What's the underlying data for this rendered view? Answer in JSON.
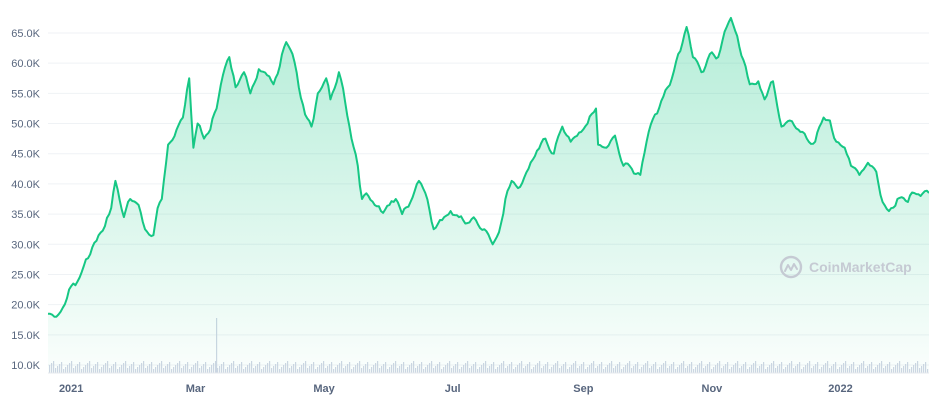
{
  "watermark": {
    "text": "CoinMarketCap"
  },
  "colors": {
    "line": "#16c784",
    "fill_top": "#16c784",
    "grid": "#eff2f5",
    "axis_text": "#58667e",
    "volume": "#cfd6e4"
  },
  "chart_data": {
    "type": "area",
    "ylim": [
      7500,
      68500
    ],
    "y_ticks": [
      10000,
      15000,
      20000,
      25000,
      30000,
      35000,
      40000,
      45000,
      50000,
      55000,
      60000,
      65000
    ],
    "y_tick_labels": [
      "10.0K",
      "15.0K",
      "20.0K",
      "25.0K",
      "30.0K",
      "35.0K",
      "40.0K",
      "45.0K",
      "50.0K",
      "55.0K",
      "60.0K",
      "65.0K"
    ],
    "x_ticks": [
      {
        "label": "2021",
        "date": "2021-01-01"
      },
      {
        "label": "Mar",
        "date": "2021-03-01"
      },
      {
        "label": "May",
        "date": "2021-05-01"
      },
      {
        "label": "Jul",
        "date": "2021-07-01"
      },
      {
        "label": "Sep",
        "date": "2021-09-01"
      },
      {
        "label": "Nov",
        "date": "2021-11-01"
      },
      {
        "label": "2022",
        "date": "2022-01-01"
      }
    ],
    "xlim": [
      "2020-12-21",
      "2022-02-12"
    ],
    "series": [
      {
        "values": [
          [
            "2020-12-21",
            18500
          ],
          [
            "2020-12-25",
            18000
          ],
          [
            "2020-12-28",
            19500
          ],
          [
            "2020-12-31",
            22500
          ],
          [
            "2021-01-02",
            23500
          ],
          [
            "2021-01-05",
            24500
          ],
          [
            "2021-01-08",
            27500
          ],
          [
            "2021-01-11",
            29500
          ],
          [
            "2021-01-14",
            31500
          ],
          [
            "2021-01-17",
            33000
          ],
          [
            "2021-01-20",
            36000
          ],
          [
            "2021-01-22",
            40500
          ],
          [
            "2021-01-26",
            34500
          ],
          [
            "2021-01-29",
            37500
          ],
          [
            "2021-02-02",
            36500
          ],
          [
            "2021-02-05",
            32500
          ],
          [
            "2021-02-09",
            31500
          ],
          [
            "2021-02-11",
            36000
          ],
          [
            "2021-02-13",
            37500
          ],
          [
            "2021-02-16",
            46500
          ],
          [
            "2021-02-20",
            49000
          ],
          [
            "2021-02-23",
            51000
          ],
          [
            "2021-02-26",
            57500
          ],
          [
            "2021-02-28",
            46000
          ],
          [
            "2021-03-02",
            50000
          ],
          [
            "2021-03-05",
            47500
          ],
          [
            "2021-03-08",
            49000
          ],
          [
            "2021-03-11",
            52500
          ],
          [
            "2021-03-14",
            58000
          ],
          [
            "2021-03-17",
            61000
          ],
          [
            "2021-03-20",
            56000
          ],
          [
            "2021-03-24",
            58500
          ],
          [
            "2021-03-27",
            55000
          ],
          [
            "2021-03-31",
            59000
          ],
          [
            "2021-04-04",
            58000
          ],
          [
            "2021-04-07",
            56500
          ],
          [
            "2021-04-10",
            59500
          ],
          [
            "2021-04-13",
            63500
          ],
          [
            "2021-04-16",
            61500
          ],
          [
            "2021-04-19",
            56000
          ],
          [
            "2021-04-22",
            51500
          ],
          [
            "2021-04-25",
            49500
          ],
          [
            "2021-04-28",
            55000
          ],
          [
            "2021-05-02",
            57500
          ],
          [
            "2021-05-04",
            54000
          ],
          [
            "2021-05-08",
            58500
          ],
          [
            "2021-05-11",
            53500
          ],
          [
            "2021-05-14",
            47500
          ],
          [
            "2021-05-17",
            43000
          ],
          [
            "2021-05-19",
            37500
          ],
          [
            "2021-05-22",
            38000
          ],
          [
            "2021-05-25",
            36500
          ],
          [
            "2021-05-28",
            35500
          ],
          [
            "2021-06-01",
            36500
          ],
          [
            "2021-06-04",
            37500
          ],
          [
            "2021-06-07",
            35000
          ],
          [
            "2021-06-11",
            37000
          ],
          [
            "2021-06-15",
            40500
          ],
          [
            "2021-06-18",
            38500
          ],
          [
            "2021-06-22",
            32500
          ],
          [
            "2021-06-26",
            34000
          ],
          [
            "2021-06-30",
            35500
          ],
          [
            "2021-07-04",
            34500
          ],
          [
            "2021-07-08",
            33500
          ],
          [
            "2021-07-12",
            34000
          ],
          [
            "2021-07-16",
            32500
          ],
          [
            "2021-07-20",
            30000
          ],
          [
            "2021-07-23",
            32000
          ],
          [
            "2021-07-26",
            37500
          ],
          [
            "2021-07-29",
            40500
          ],
          [
            "2021-08-02",
            39500
          ],
          [
            "2021-08-06",
            42500
          ],
          [
            "2021-08-10",
            45500
          ],
          [
            "2021-08-14",
            47500
          ],
          [
            "2021-08-18",
            45000
          ],
          [
            "2021-08-22",
            49500
          ],
          [
            "2021-08-26",
            47000
          ],
          [
            "2021-08-30",
            48500
          ],
          [
            "2021-09-03",
            50000
          ],
          [
            "2021-09-07",
            52500
          ],
          [
            "2021-09-08",
            46500
          ],
          [
            "2021-09-12",
            46000
          ],
          [
            "2021-09-16",
            48000
          ],
          [
            "2021-09-20",
            43000
          ],
          [
            "2021-09-24",
            42500
          ],
          [
            "2021-09-28",
            41500
          ],
          [
            "2021-10-01",
            47000
          ],
          [
            "2021-10-05",
            51500
          ],
          [
            "2021-10-09",
            54500
          ],
          [
            "2021-10-13",
            57500
          ],
          [
            "2021-10-16",
            61500
          ],
          [
            "2021-10-20",
            66000
          ],
          [
            "2021-10-23",
            61000
          ],
          [
            "2021-10-27",
            58500
          ],
          [
            "2021-10-31",
            61500
          ],
          [
            "2021-11-04",
            61000
          ],
          [
            "2021-11-08",
            66000
          ],
          [
            "2021-11-10",
            67500
          ],
          [
            "2021-11-13",
            64500
          ],
          [
            "2021-11-16",
            60500
          ],
          [
            "2021-11-19",
            56500
          ],
          [
            "2021-11-23",
            57000
          ],
          [
            "2021-11-26",
            54000
          ],
          [
            "2021-11-30",
            57000
          ],
          [
            "2021-12-04",
            49500
          ],
          [
            "2021-12-08",
            50500
          ],
          [
            "2021-12-12",
            49000
          ],
          [
            "2021-12-16",
            47500
          ],
          [
            "2021-12-20",
            47000
          ],
          [
            "2021-12-24",
            51000
          ],
          [
            "2021-12-27",
            50500
          ],
          [
            "2021-12-30",
            47000
          ],
          [
            "2022-01-03",
            46000
          ],
          [
            "2022-01-06",
            43000
          ],
          [
            "2022-01-10",
            41500
          ],
          [
            "2022-01-14",
            43500
          ],
          [
            "2022-01-18",
            42000
          ],
          [
            "2022-01-21",
            37000
          ],
          [
            "2022-01-24",
            35500
          ],
          [
            "2022-01-28",
            37500
          ],
          [
            "2022-02-02",
            37000
          ],
          [
            "2022-02-05",
            38500
          ],
          [
            "2022-02-08",
            38000
          ],
          [
            "2022-02-12",
            38500
          ]
        ]
      }
    ],
    "volume_ticks_baseline": true
  }
}
